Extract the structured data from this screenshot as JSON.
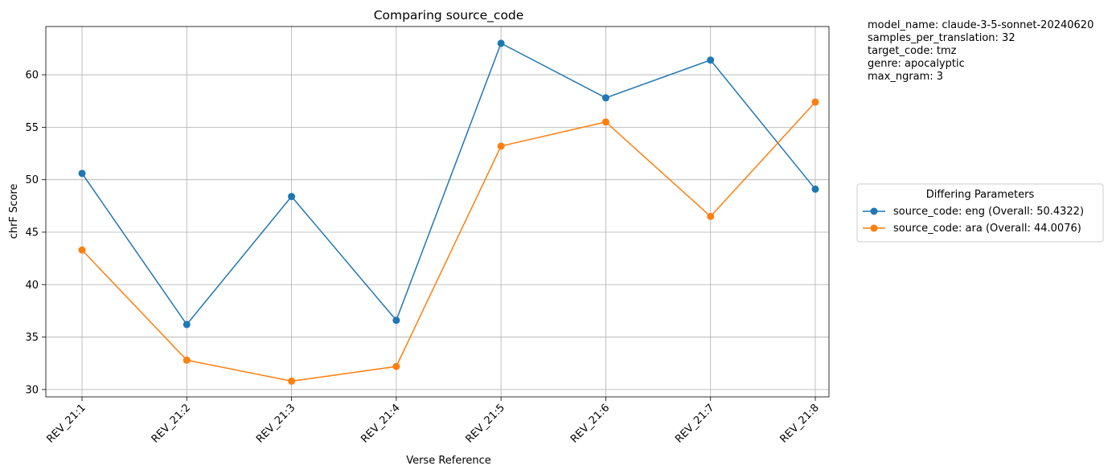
{
  "chart_data": {
    "type": "line",
    "title": "Comparing source_code",
    "xlabel": "Verse Reference",
    "ylabel": "chrF Score",
    "categories": [
      "REV_21:1",
      "REV_21:2",
      "REV_21:3",
      "REV_21:4",
      "REV_21:5",
      "REV_21:6",
      "REV_21:7",
      "REV_21:8"
    ],
    "ylim": [
      29.3,
      64.6
    ],
    "yticks": [
      30,
      35,
      40,
      45,
      50,
      55,
      60
    ],
    "grid": true,
    "legend": {
      "title": "Differing Parameters",
      "placement": "center-right outside"
    },
    "series": [
      {
        "name": "source_code: eng (Overall: 50.4322)",
        "color": "#1f77b4",
        "values": [
          50.6,
          36.2,
          48.4,
          36.6,
          63.0,
          57.8,
          61.4,
          49.1
        ]
      },
      {
        "name": "source_code: ara (Overall: 44.0076)",
        "color": "#ff7f0e",
        "values": [
          43.3,
          32.8,
          30.8,
          32.2,
          53.2,
          55.5,
          46.5,
          57.4
        ]
      }
    ],
    "annotations": [
      "model_name: claude-3-5-sonnet-20240620",
      "samples_per_translation: 32",
      "target_code: tmz",
      "genre: apocalyptic",
      "max_ngram: 3"
    ]
  }
}
